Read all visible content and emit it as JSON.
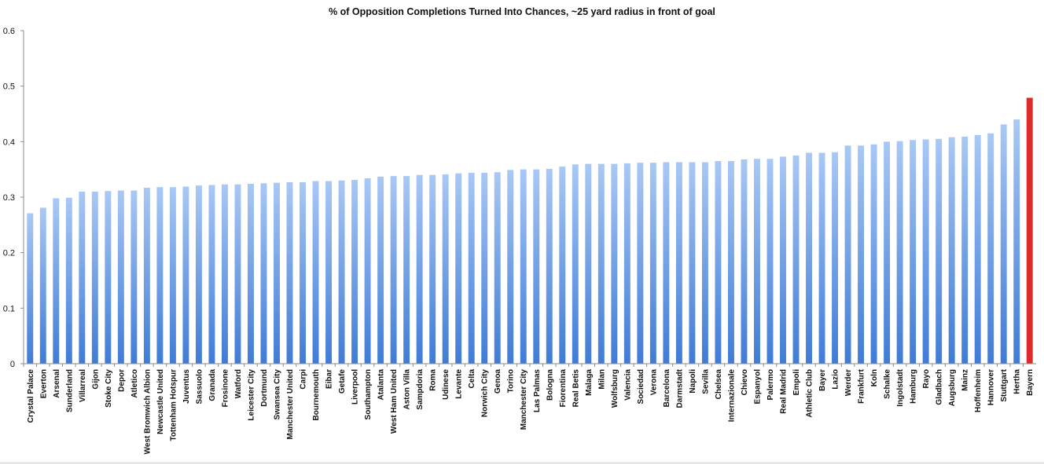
{
  "chart_data": {
    "type": "bar",
    "title": "% of Opposition Completions Turned Into Chances, ~25 yard radius in front of goal",
    "xlabel": "",
    "ylabel": "",
    "ylim": [
      0,
      0.6
    ],
    "yticks": [
      "0",
      "0.1",
      "0.2",
      "0.3",
      "0.4",
      "0.5",
      "0.6"
    ],
    "grid": false,
    "legend": "none",
    "colors": {
      "default": "#6f9fe6",
      "highlight": "#dd2a2a"
    },
    "highlight_category": "Bayern",
    "categories": [
      "Crystal Palace",
      "Everton",
      "Arsenal",
      "Sunderland",
      "Villarreal",
      "Gijon",
      "Stoke City",
      "Depor",
      "Atletico",
      "West Bromwich Albion",
      "Newcastle United",
      "Tottenham Hotspur",
      "Juventus",
      "Sassuolo",
      "Granada",
      "Frosinone",
      "Watford",
      "Leicester City",
      "Dortmund",
      "Swansea City",
      "Manchester United",
      "Carpi",
      "Bournemouth",
      "Eibar",
      "Getafe",
      "Liverpool",
      "Southampton",
      "Atalanta",
      "West Ham United",
      "Aston Villa",
      "Sampdoria",
      "Roma",
      "Udinese",
      "Levante",
      "Celta",
      "Norwich City",
      "Genoa",
      "Torino",
      "Manchester City",
      "Las Palmas",
      "Bologna",
      "Fiorentina",
      "Real Betis",
      "Malaga",
      "Milan",
      "Wolfsburg",
      "Valencia",
      "Sociedad",
      "Verona",
      "Barcelona",
      "Darmstadt",
      "Napoli",
      "Sevilla",
      "Chelsea",
      "Internazionale",
      "Chievo",
      "Espanyol",
      "Palermo",
      "Real Madrid",
      "Empoli",
      "Athletic Club",
      "Bayer",
      "Lazio",
      "Werder",
      "Frankfurt",
      "Koln",
      "Schalke",
      "Ingolstadt",
      "Hamburg",
      "Rayo",
      "Gladbach",
      "Augsburg",
      "Mainz",
      "Hoffenheim",
      "Hannover",
      "Stuttgart",
      "Hertha",
      "Bayern"
    ],
    "values": [
      0.271,
      0.281,
      0.298,
      0.299,
      0.31,
      0.31,
      0.311,
      0.312,
      0.312,
      0.317,
      0.318,
      0.318,
      0.319,
      0.321,
      0.322,
      0.323,
      0.323,
      0.324,
      0.325,
      0.326,
      0.327,
      0.327,
      0.329,
      0.329,
      0.33,
      0.331,
      0.334,
      0.337,
      0.338,
      0.338,
      0.34,
      0.34,
      0.341,
      0.343,
      0.344,
      0.344,
      0.345,
      0.349,
      0.35,
      0.35,
      0.351,
      0.355,
      0.359,
      0.36,
      0.36,
      0.36,
      0.361,
      0.362,
      0.362,
      0.363,
      0.363,
      0.363,
      0.363,
      0.365,
      0.365,
      0.368,
      0.369,
      0.369,
      0.373,
      0.375,
      0.38,
      0.38,
      0.381,
      0.393,
      0.393,
      0.395,
      0.4,
      0.401,
      0.403,
      0.404,
      0.405,
      0.408,
      0.409,
      0.412,
      0.415,
      0.431,
      0.44,
      0.479
    ]
  }
}
